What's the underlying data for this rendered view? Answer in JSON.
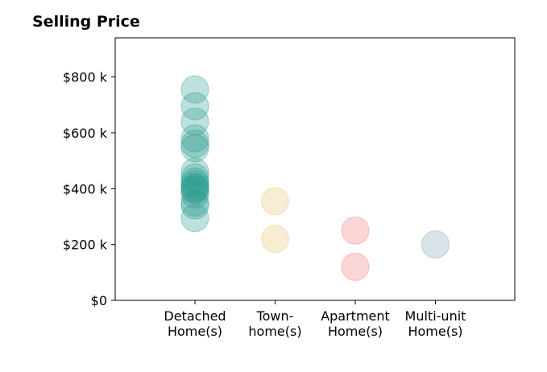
{
  "chart_data": {
    "type": "scatter",
    "title": "Selling Price",
    "categories": [
      "Detached\nHome(s)",
      "Town-\nhome(s)",
      "Apartment\nHome(s)",
      "Multi-unit\nHome(s)"
    ],
    "y_tick_labels": [
      "$0",
      "$200 k",
      "$400 k",
      "$600 k",
      "$800 k"
    ],
    "y_ticks": [
      0,
      200000,
      400000,
      600000,
      800000
    ],
    "ylim": [
      0,
      940000
    ],
    "grid": false,
    "series": [
      {
        "category": "Detached\nHome(s)",
        "color": "#2a9d8f",
        "values": [
          755000,
          695000,
          640000,
          580000,
          560000,
          545000,
          460000,
          440000,
          425000,
          415000,
          405000,
          400000,
          395000,
          380000,
          350000,
          340000,
          295000
        ]
      },
      {
        "category": "Town-\nhome(s)",
        "color": "#e9c46a",
        "values": [
          355000,
          220000
        ]
      },
      {
        "category": "Apartment\nHome(s)",
        "color": "#ef767a",
        "values": [
          250000,
          120000
        ]
      },
      {
        "category": "Multi-unit\nHome(s)",
        "color": "#7f9fb5",
        "values": [
          200000
        ]
      }
    ]
  }
}
